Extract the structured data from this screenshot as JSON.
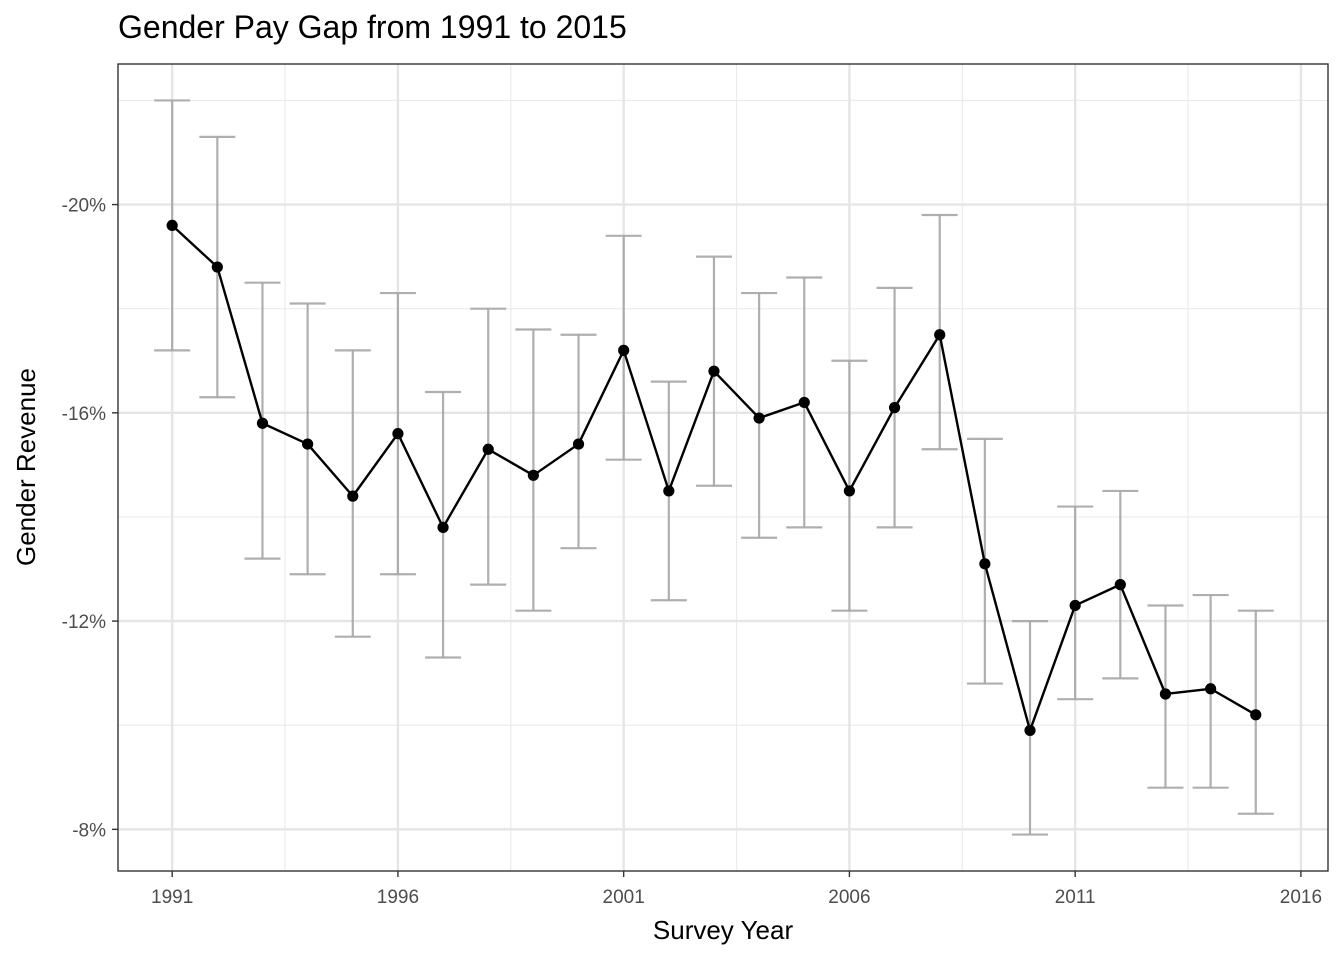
{
  "chart_data": {
    "type": "line",
    "title": "Gender Pay Gap from 1991 to 2015",
    "xlabel": "Survey Year",
    "ylabel": "Gender Revenue",
    "y_reversed": true,
    "xlim": [
      1989.8,
      2016.6
    ],
    "ylim": [
      -22.7,
      -7.2
    ],
    "x_ticks": [
      1991,
      1996,
      2001,
      2006,
      2011,
      2016
    ],
    "x_tick_labels": [
      "1991",
      "1996",
      "2001",
      "2006",
      "2011",
      "2016"
    ],
    "y_ticks": [
      -20,
      -16,
      -12,
      -8
    ],
    "y_tick_labels": [
      "-20%",
      "-16%",
      "-12%",
      "-8%"
    ],
    "grid": true,
    "legend": "none",
    "series": [
      {
        "x": [
          1991,
          1992,
          1993,
          1994,
          1995,
          1996,
          1997,
          1998,
          1999,
          2000,
          2001,
          2002,
          2003,
          2004,
          2005,
          2006,
          2007,
          2008,
          2009,
          2010,
          2011,
          2012,
          2013,
          2014,
          2015
        ],
        "y": [
          -19.6,
          -18.8,
          -15.8,
          -15.4,
          -14.4,
          -15.6,
          -13.8,
          -15.3,
          -14.8,
          -15.4,
          -17.2,
          -14.5,
          -16.8,
          -15.9,
          -16.2,
          -14.5,
          -16.1,
          -17.5,
          -13.1,
          -9.9,
          -12.3,
          -12.7,
          -10.6,
          -10.7,
          -10.2
        ],
        "y_lower": [
          -17.2,
          -16.3,
          -13.2,
          -12.9,
          -11.7,
          -12.9,
          -11.3,
          -12.7,
          -12.2,
          -13.4,
          -15.1,
          -12.4,
          -14.6,
          -13.6,
          -13.8,
          -12.2,
          -13.8,
          -15.3,
          -10.8,
          -7.9,
          -10.5,
          -10.9,
          -8.8,
          -8.8,
          -8.3
        ],
        "y_upper": [
          -22.0,
          -21.3,
          -18.5,
          -18.1,
          -17.2,
          -18.3,
          -16.4,
          -18.0,
          -17.6,
          -17.5,
          -19.4,
          -16.6,
          -19.0,
          -18.3,
          -18.6,
          -17.0,
          -18.4,
          -19.8,
          -15.5,
          -12.0,
          -14.2,
          -14.5,
          -12.3,
          -12.5,
          -12.2
        ],
        "color": "#000000",
        "errorbar_color": "#a6a6a6"
      }
    ]
  }
}
